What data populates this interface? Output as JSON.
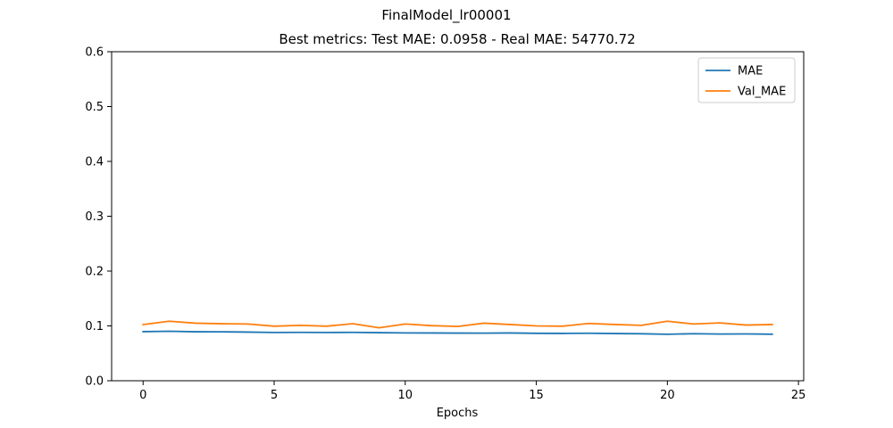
{
  "chart_data": {
    "type": "line",
    "suptitle": "FinalModel_lr00001",
    "title": "Best metrics: Test MAE: 0.0958 - Real MAE: 54770.72",
    "xlabel": "Epochs",
    "ylabel": "",
    "xlim": [
      -1.2,
      25.2
    ],
    "ylim": [
      0,
      0.6
    ],
    "xticks": [
      0,
      5,
      10,
      15,
      20,
      25
    ],
    "yticks": [
      0.0,
      0.1,
      0.2,
      0.3,
      0.4,
      0.5,
      0.6
    ],
    "xtick_labels": [
      "0",
      "5",
      "10",
      "15",
      "20",
      "25"
    ],
    "ytick_labels": [
      "0.0",
      "0.1",
      "0.2",
      "0.3",
      "0.4",
      "0.5",
      "0.6"
    ],
    "grid": false,
    "legend_position": "top-right",
    "x": [
      0,
      1,
      2,
      3,
      4,
      5,
      6,
      7,
      8,
      9,
      10,
      11,
      12,
      13,
      14,
      15,
      16,
      17,
      18,
      19,
      20,
      21,
      22,
      23,
      24
    ],
    "series": [
      {
        "name": "MAE",
        "color": "#1f77b4",
        "values": [
          0.0895,
          0.0902,
          0.0893,
          0.0892,
          0.0887,
          0.088,
          0.0882,
          0.088,
          0.0882,
          0.0877,
          0.0872,
          0.0871,
          0.0869,
          0.0868,
          0.0871,
          0.0865,
          0.0863,
          0.0866,
          0.0861,
          0.0857,
          0.0848,
          0.0858,
          0.0852,
          0.0854,
          0.0849
        ]
      },
      {
        "name": "Val_MAE",
        "color": "#ff7f0e",
        "values": [
          0.1025,
          0.1085,
          0.105,
          0.104,
          0.1035,
          0.0995,
          0.101,
          0.0995,
          0.104,
          0.0965,
          0.1035,
          0.1005,
          0.099,
          0.105,
          0.1025,
          0.1,
          0.0995,
          0.1045,
          0.1025,
          0.101,
          0.1085,
          0.1035,
          0.1055,
          0.1015,
          0.1025
        ]
      }
    ]
  }
}
